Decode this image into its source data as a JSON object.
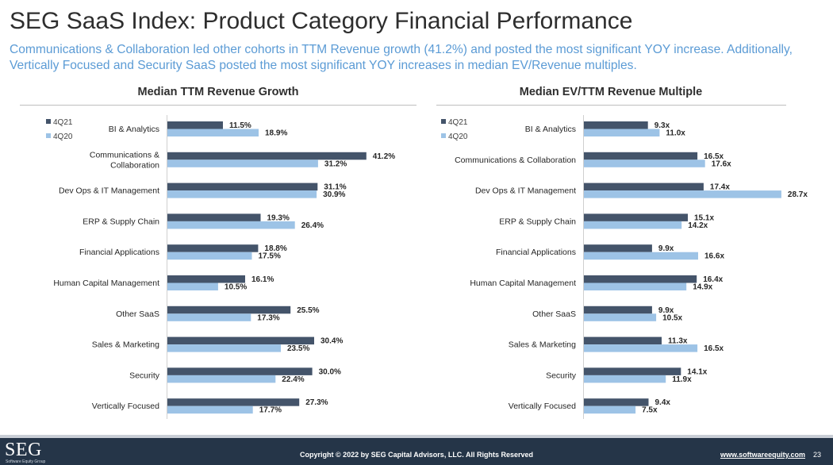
{
  "title": "SEG SaaS Index: Product Category Financial Performance",
  "subtitle": "Communications & Collaboration led other cohorts in TTM Revenue growth (41.2%) and posted the most significant YOY increase. Additionally, Vertically Focused and Security SaaS posted the most significant YOY increases in median EV/Revenue multiples.",
  "colors": {
    "series_4q21": "#44546a",
    "series_4q20": "#9dc3e6",
    "subtitle": "#5b9bd5",
    "footer": "#253548"
  },
  "chart_data": [
    {
      "type": "bar",
      "orientation": "horizontal",
      "title": "Median TTM Revenue Growth",
      "categories": [
        [
          "BI & Analytics"
        ],
        [
          "Communications &",
          "Collaboration"
        ],
        [
          "Dev Ops & IT Management"
        ],
        [
          "ERP & Supply Chain"
        ],
        [
          "Financial Applications"
        ],
        [
          "Human Capital Management"
        ],
        [
          "Other SaaS"
        ],
        [
          "Sales & Marketing"
        ],
        [
          "Security"
        ],
        [
          "Vertically Focused"
        ]
      ],
      "series": [
        {
          "name": "4Q21",
          "values": [
            11.5,
            41.2,
            31.1,
            19.3,
            18.8,
            16.1,
            25.5,
            30.4,
            30.0,
            27.3
          ],
          "labels": [
            "11.5%",
            "41.2%",
            "31.1%",
            "19.3%",
            "18.8%",
            "16.1%",
            "25.5%",
            "30.4%",
            "30.0%",
            "27.3%"
          ]
        },
        {
          "name": "4Q20",
          "values": [
            18.9,
            31.2,
            30.9,
            26.4,
            17.5,
            10.5,
            17.3,
            23.5,
            22.4,
            17.7
          ],
          "labels": [
            "18.9%",
            "31.2%",
            "30.9%",
            "26.4%",
            "17.5%",
            "10.5%",
            "17.3%",
            "23.5%",
            "22.4%",
            "17.7%"
          ]
        }
      ],
      "legend": "top-left",
      "grid": false,
      "xlim": [
        0,
        46
      ]
    },
    {
      "type": "bar",
      "orientation": "horizontal",
      "title": "Median EV/TTM Revenue Multiple",
      "categories": [
        [
          "BI & Analytics"
        ],
        [
          "Communications & Collaboration"
        ],
        [
          "Dev Ops & IT Management"
        ],
        [
          "ERP & Supply Chain"
        ],
        [
          "Financial Applications"
        ],
        [
          "Human Capital Management"
        ],
        [
          "Other SaaS"
        ],
        [
          "Sales & Marketing"
        ],
        [
          "Security"
        ],
        [
          "Vertically Focused"
        ]
      ],
      "series": [
        {
          "name": "4Q21",
          "values": [
            9.3,
            16.5,
            17.4,
            15.1,
            9.9,
            16.4,
            9.9,
            11.3,
            14.1,
            9.4
          ],
          "labels": [
            "9.3x",
            "16.5x",
            "17.4x",
            "15.1x",
            "9.9x",
            "16.4x",
            "9.9x",
            "11.3x",
            "14.1x",
            "9.4x"
          ]
        },
        {
          "name": "4Q20",
          "values": [
            11.0,
            17.6,
            28.7,
            14.2,
            16.6,
            14.9,
            10.5,
            16.5,
            11.9,
            7.5
          ],
          "labels": [
            "11.0x",
            "17.6x",
            "28.7x",
            "14.2x",
            "16.6x",
            "14.9x",
            "10.5x",
            "16.5x",
            "11.9x",
            "7.5x"
          ]
        }
      ],
      "legend": "top-left",
      "grid": false,
      "xlim": [
        0,
        29.4
      ]
    }
  ],
  "footer": {
    "logo": "SEG",
    "logo_sub": "Software Equity Group",
    "copyright": "Copyright © 2022 by SEG Capital Advisors, LLC. All Rights Reserved",
    "url": "www.softwareequity.com",
    "page": "23"
  }
}
